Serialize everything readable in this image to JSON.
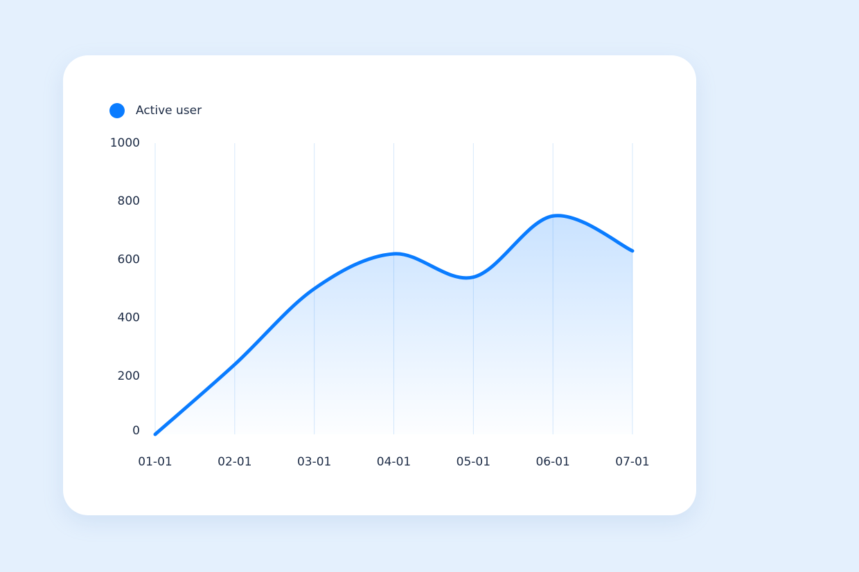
{
  "chart_data": {
    "type": "line",
    "categories": [
      "01-01",
      "02-01",
      "03-01",
      "04-01",
      "05-01",
      "06-01",
      "07-01"
    ],
    "series": [
      {
        "name": "Active user",
        "color": "#0a7cff",
        "values": [
          0,
          240,
          500,
          620,
          540,
          750,
          630
        ]
      }
    ],
    "ylim": [
      0,
      1000
    ],
    "yticks": [
      0,
      200,
      400,
      600,
      800,
      1000
    ],
    "grid": true,
    "area": true,
    "legend": "top-left"
  }
}
